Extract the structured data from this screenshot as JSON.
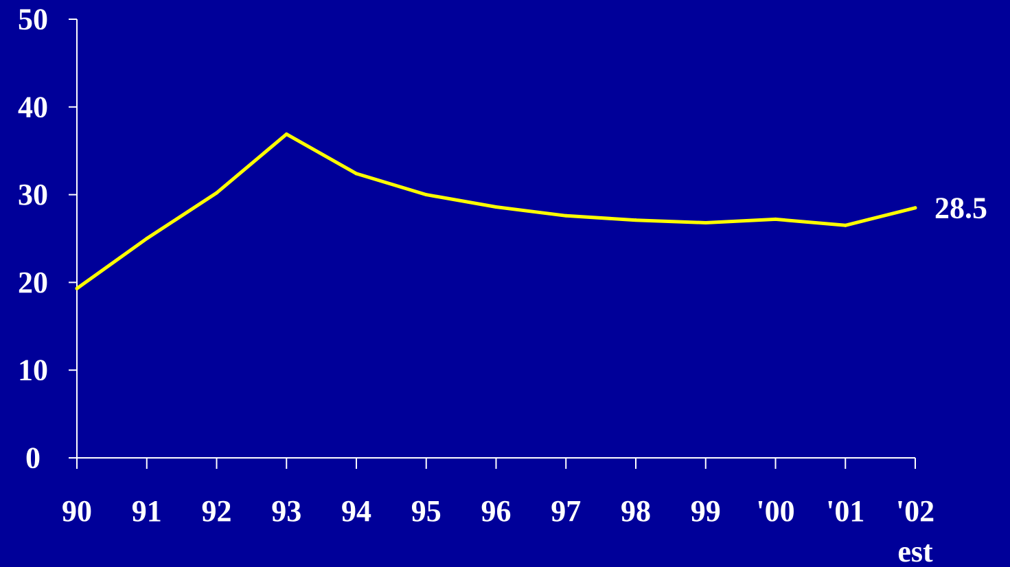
{
  "chart_data": {
    "type": "line",
    "title": "",
    "xlabel": "",
    "ylabel": "",
    "categories": [
      "90",
      "91",
      "92",
      "93",
      "94",
      "95",
      "96",
      "97",
      "98",
      "99",
      "'00",
      "'01",
      "'02"
    ],
    "category_sublabels": {
      "12": "est"
    },
    "series": [
      {
        "values": [
          19.3,
          25.0,
          30.2,
          36.9,
          32.4,
          30.0,
          28.6,
          27.6,
          27.1,
          26.8,
          27.2,
          26.5,
          28.5
        ],
        "color": "#FFFF00"
      }
    ],
    "yticks": [
      0,
      10,
      20,
      30,
      40,
      50
    ],
    "ylim": [
      0,
      50
    ],
    "grid": false,
    "legend": "none",
    "annotations": [
      {
        "label": "28.5",
        "series": 0,
        "index": 12
      }
    ],
    "colors": {
      "background": "#000099",
      "axis": "#FFFFFF",
      "text": "#FFFFFF"
    }
  }
}
